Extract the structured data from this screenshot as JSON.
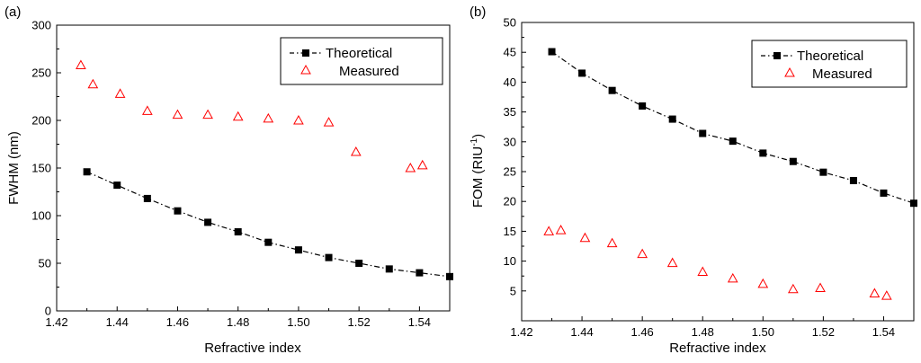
{
  "chart_data": [
    {
      "type": "scatter",
      "panel_label": "(a)",
      "xlabel": "Refractive index",
      "ylabel": "FWHM (nm)",
      "xlim": [
        1.42,
        1.55
      ],
      "ylim": [
        0,
        300
      ],
      "xticks": [
        1.42,
        1.44,
        1.46,
        1.48,
        1.5,
        1.52,
        1.54
      ],
      "xtick_labels": [
        "1.42",
        "1.44",
        "1.46",
        "1.48",
        "1.50",
        "1.52",
        "1.54"
      ],
      "yticks": [
        0,
        50,
        100,
        150,
        200,
        250,
        300
      ],
      "ytick_labels": [
        "0",
        "50",
        "100",
        "150",
        "200",
        "250",
        "300"
      ],
      "grid": false,
      "legend_position": "top-right",
      "series": [
        {
          "name": "Theoretical",
          "marker": "square",
          "line": "dashed",
          "color": "#000000",
          "x": [
            1.43,
            1.44,
            1.45,
            1.46,
            1.47,
            1.48,
            1.49,
            1.5,
            1.51,
            1.52,
            1.53,
            1.54,
            1.55
          ],
          "y": [
            146,
            132,
            118,
            105,
            93,
            83,
            72,
            64,
            56,
            50,
            44,
            40,
            36
          ]
        },
        {
          "name": "Measured",
          "marker": "triangle-open",
          "line": "none",
          "color": "#ff0000",
          "x": [
            1.428,
            1.432,
            1.441,
            1.45,
            1.46,
            1.47,
            1.48,
            1.49,
            1.5,
            1.51,
            1.519,
            1.537,
            1.541
          ],
          "y": [
            258,
            238,
            228,
            210,
            206,
            206,
            204,
            202,
            200,
            198,
            167,
            150,
            153
          ]
        }
      ]
    },
    {
      "type": "scatter",
      "panel_label": "(b)",
      "xlabel": "Refractive index",
      "ylabel": "FOM (RIU",
      "ylabel_sup": "-1",
      "ylabel_end": ")",
      "xlim": [
        1.42,
        1.55
      ],
      "ylim": [
        0,
        50
      ],
      "xticks": [
        1.42,
        1.44,
        1.46,
        1.48,
        1.5,
        1.52,
        1.54
      ],
      "xtick_labels": [
        "1.42",
        "1.44",
        "1.46",
        "1.48",
        "1.50",
        "1.52",
        "1.54"
      ],
      "yticks": [
        5,
        10,
        15,
        20,
        25,
        30,
        35,
        40,
        45,
        50
      ],
      "ytick_labels": [
        "5",
        "10",
        "15",
        "20",
        "25",
        "30",
        "35",
        "40",
        "45",
        "50"
      ],
      "grid": false,
      "legend_position": "top-right",
      "series": [
        {
          "name": "Theoretical",
          "marker": "square",
          "line": "dashed",
          "color": "#000000",
          "x": [
            1.43,
            1.44,
            1.45,
            1.46,
            1.47,
            1.48,
            1.49,
            1.5,
            1.51,
            1.52,
            1.53,
            1.54,
            1.55
          ],
          "y": [
            45.1,
            41.5,
            38.6,
            36.0,
            33.8,
            31.4,
            30.1,
            28.1,
            26.7,
            24.9,
            23.5,
            21.4,
            19.7
          ]
        },
        {
          "name": "Measured",
          "marker": "triangle-open",
          "line": "none",
          "color": "#ff0000",
          "x": [
            1.429,
            1.433,
            1.441,
            1.45,
            1.46,
            1.47,
            1.48,
            1.49,
            1.5,
            1.51,
            1.519,
            1.537,
            1.541
          ],
          "y": [
            15.0,
            15.2,
            13.9,
            13.0,
            11.2,
            9.7,
            8.2,
            7.1,
            6.2,
            5.3,
            5.5,
            4.6,
            4.2
          ]
        }
      ]
    }
  ]
}
